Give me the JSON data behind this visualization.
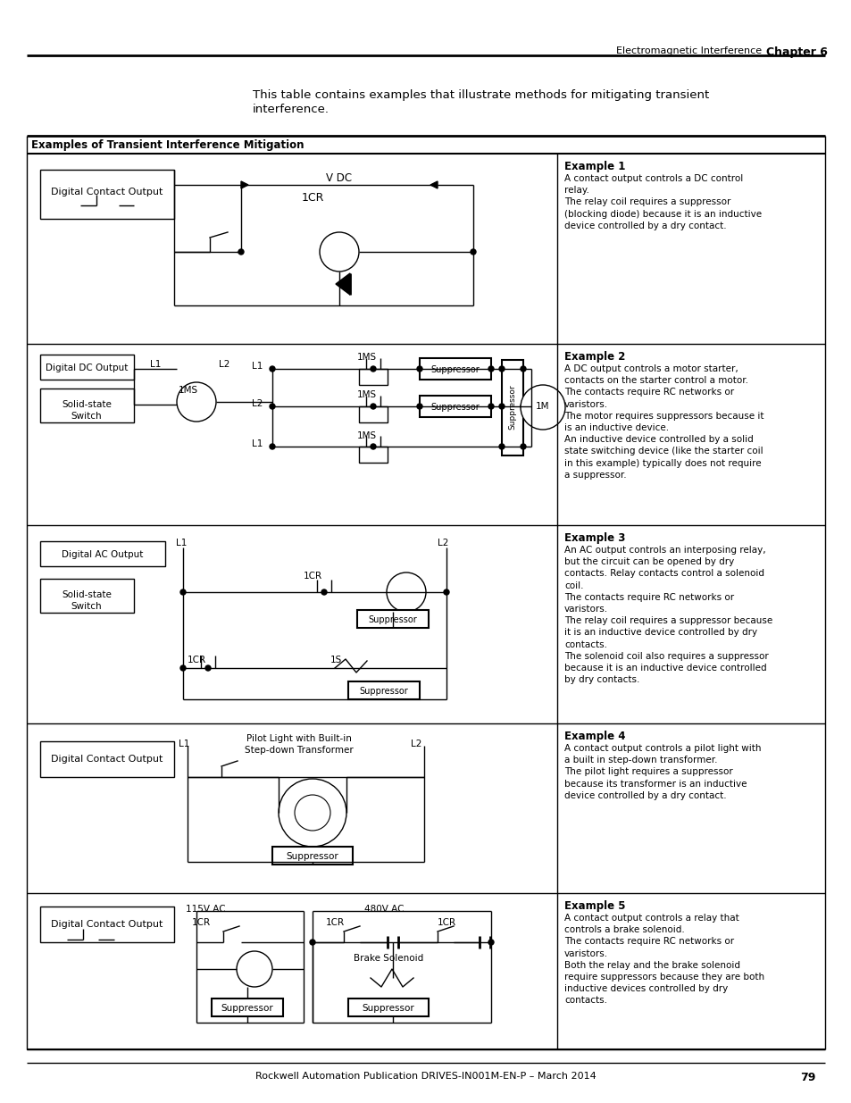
{
  "page_header_left": "Electromagnetic Interference",
  "page_header_right": "Chapter 6",
  "page_footer": "Rockwell Automation Publication DRIVES-IN001M-EN-P – March 2014",
  "page_number": "79",
  "intro_text_line1": "This table contains examples that illustrate methods for mitigating transient",
  "intro_text_line2": "interference.",
  "table_header": "Examples of Transient Interference Mitigation",
  "example1_title": "Example 1",
  "example1_text": "A contact output controls a DC control\nrelay.\nThe relay coil requires a suppressor\n(blocking diode) because it is an inductive\ndevice controlled by a dry contact.",
  "example2_title": "Example 2",
  "example2_text": "A DC output controls a motor starter,\ncontacts on the starter control a motor.\nThe contacts require RC networks or\nvaristors.\nThe motor requires suppressors because it\nis an inductive device.\nAn inductive device controlled by a solid\nstate switching device (like the starter coil\nin this example) typically does not require\na suppressor.",
  "example3_title": "Example 3",
  "example3_text": "An AC output controls an interposing relay,\nbut the circuit can be opened by dry\ncontacts. Relay contacts control a solenoid\ncoil.\nThe contacts require RC networks or\nvaristors.\nThe relay coil requires a suppressor because\nit is an inductive device controlled by dry\ncontacts.\nThe solenoid coil also requires a suppressor\nbecause it is an inductive device controlled\nby dry contacts.",
  "example4_title": "Example 4",
  "example4_text": "A contact output controls a pilot light with\na built in step-down transformer.\nThe pilot light requires a suppressor\nbecause its transformer is an inductive\ndevice controlled by a dry contact.",
  "example5_title": "Example 5",
  "example5_text": "A contact output controls a relay that\ncontrols a brake solenoid.\nThe contacts require RC networks or\nvaristors.\nBoth the relay and the brake solenoid\nrequire suppressors because they are both\ninductive devices controlled by dry\ncontacts.",
  "bg_color": "#ffffff"
}
